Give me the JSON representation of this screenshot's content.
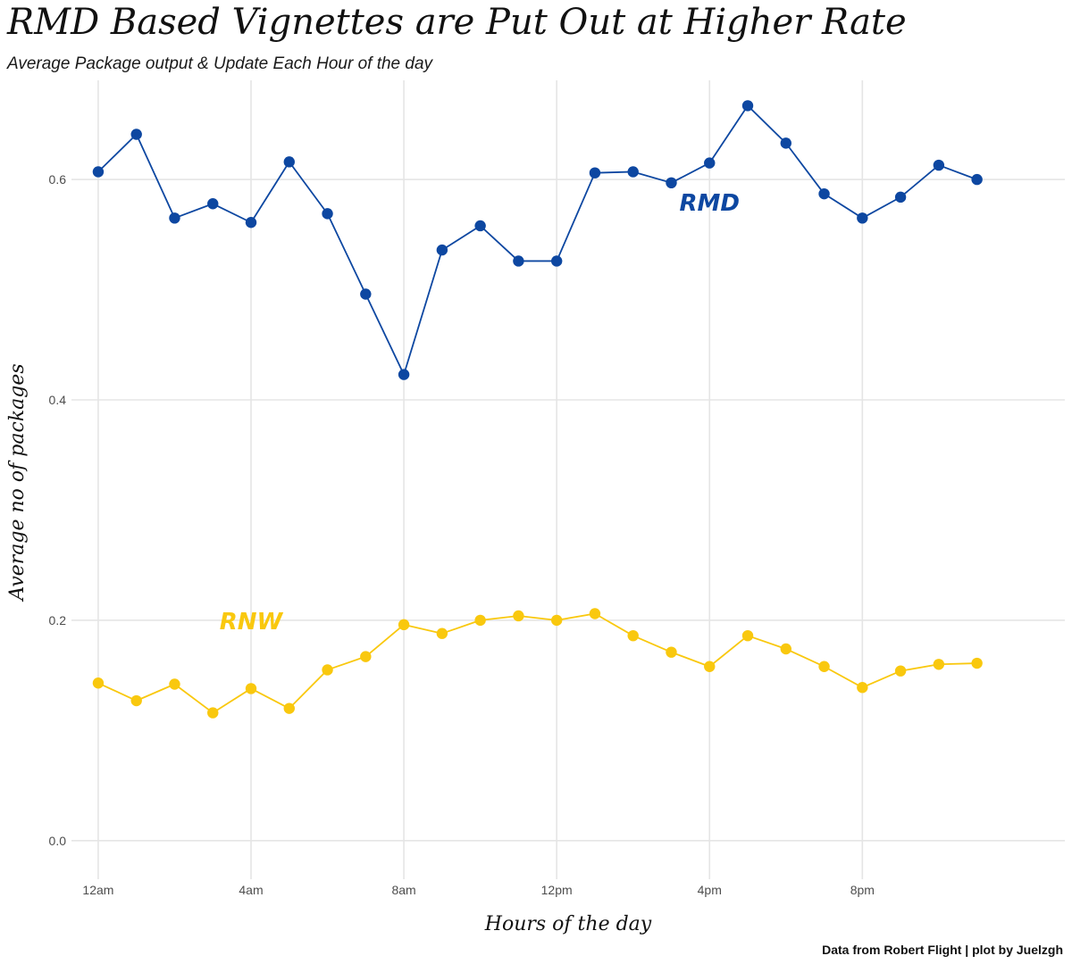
{
  "chart_data": {
    "type": "line",
    "title": "RMD Based Vignettes are Put Out at Higher Rate",
    "subtitle": "Average Package output & Update Each Hour of the day",
    "xlabel": "Hours of the day",
    "ylabel": "Average no of packages",
    "caption": "Data from Robert Flight | plot by Juelzgh",
    "x": [
      0,
      1,
      2,
      3,
      4,
      5,
      6,
      7,
      8,
      9,
      10,
      11,
      12,
      13,
      14,
      15,
      16,
      17,
      18,
      19,
      20,
      21,
      22,
      23
    ],
    "x_ticks": [
      {
        "value": 0,
        "label": "12am"
      },
      {
        "value": 4,
        "label": "4am"
      },
      {
        "value": 8,
        "label": "8am"
      },
      {
        "value": 12,
        "label": "12pm"
      },
      {
        "value": 16,
        "label": "4pm"
      },
      {
        "value": 20,
        "label": "8pm"
      }
    ],
    "y_ticks": [
      {
        "value": 0.0,
        "label": "0.0"
      },
      {
        "value": 0.2,
        "label": "0.2"
      },
      {
        "value": 0.4,
        "label": "0.4"
      },
      {
        "value": 0.6,
        "label": "0.6"
      }
    ],
    "xlim": [
      -0.7,
      25.3
    ],
    "ylim": [
      -0.035,
      0.69
    ],
    "grid": true,
    "legend": "none",
    "series": [
      {
        "name": "RMD",
        "color": "#0d47a1",
        "label_at": [
          16,
          0.578
        ],
        "values": [
          0.607,
          0.641,
          0.565,
          0.578,
          0.561,
          0.616,
          0.569,
          0.496,
          0.423,
          0.536,
          0.558,
          0.526,
          0.526,
          0.606,
          0.607,
          0.597,
          0.615,
          0.667,
          0.633,
          0.587,
          0.565,
          0.584,
          0.613,
          0.6
        ]
      },
      {
        "name": "RNW",
        "color": "#f9c80e",
        "label_at": [
          4,
          0.198
        ],
        "values": [
          0.143,
          0.127,
          0.142,
          0.116,
          0.138,
          0.12,
          0.155,
          0.167,
          0.196,
          0.188,
          0.2,
          0.204,
          0.2,
          0.206,
          0.186,
          0.171,
          0.158,
          0.186,
          0.174,
          0.158,
          0.139,
          0.154,
          0.16,
          0.161
        ]
      }
    ]
  }
}
